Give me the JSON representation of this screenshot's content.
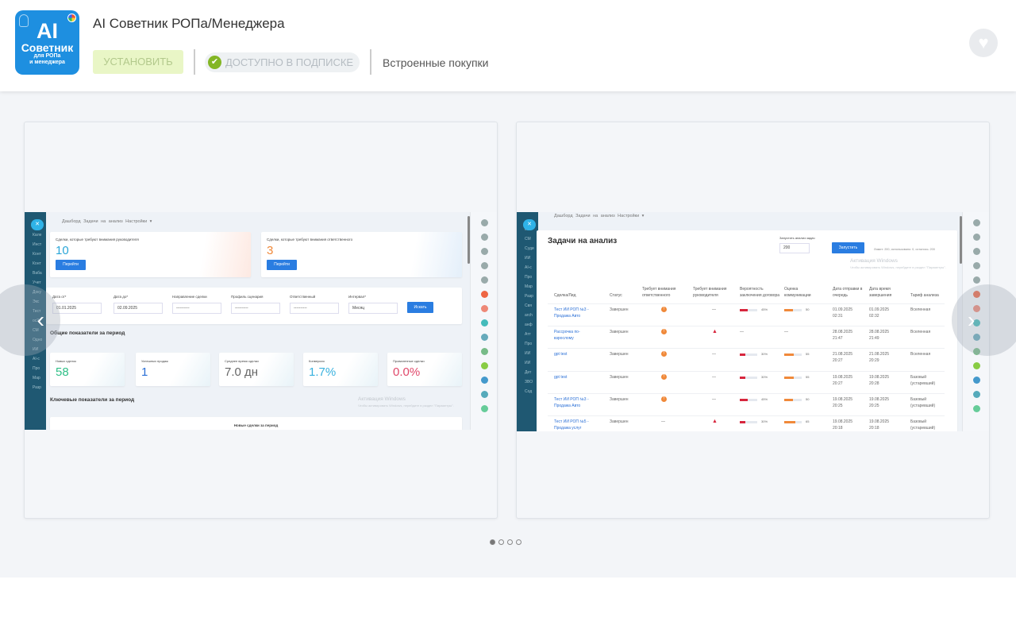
{
  "app": {
    "logo_text": [
      "AI",
      "Советник",
      "для РОПа",
      "и менеджера"
    ],
    "title": "AI Советник РОПа/Менеджера",
    "install_label": "УСТАНОВИТЬ",
    "subscription_label": "ДОСТУПНО В ПОДПИСКЕ",
    "inapp_label": "Встроенные покупки"
  },
  "colors": {
    "accent": "#1e8fe0",
    "install_bg": "#e9f6c6",
    "check": "#83b624"
  },
  "carousel": {
    "pages": 4,
    "active": 0
  },
  "shot1": {
    "nav": "Дашборд  Задачи на анализ  Настройки ▾",
    "side": [
      "Кале",
      "Инст",
      "Конт",
      "Конт",
      "Ваба",
      "Учет",
      "Доку",
      "Экс",
      "Тест",
      "ос2",
      "СМ",
      "Одно",
      "ИИ",
      "AI-с",
      "Про",
      "Мар",
      "Разр"
    ],
    "alert_cards": [
      {
        "label": "Сделки, которые требуют внимания руководителя",
        "value": "10",
        "color": "#2aa6d8"
      },
      {
        "label": "Сделки, которые требуют внимания ответственного",
        "value": "3",
        "color": "#f0893a"
      }
    ],
    "go_label": "Перейти",
    "filters": [
      {
        "label": "Дата от*",
        "value": "01.01.2025"
      },
      {
        "label": "Дата до*",
        "value": "02.09.2025"
      },
      {
        "label": "Направление сделки",
        "value": "----------"
      },
      {
        "label": "Профиль сценария",
        "value": "----------"
      },
      {
        "label": "Ответственный",
        "value": "----------"
      },
      {
        "label": "Интервал*",
        "value": "Месяц"
      }
    ],
    "search_label": "Искать",
    "section1": "Общие показатели за период",
    "stats": [
      {
        "label": "Новых сделок",
        "value": "58",
        "color": "#2fbf87"
      },
      {
        "label": "Успешных продаж",
        "value": "1",
        "color": "#2a6fd6"
      },
      {
        "label": "Среднее время сделки",
        "value": "7.0 дн",
        "color": "#666"
      },
      {
        "label": "Конверсия",
        "value": "1.7%",
        "color": "#39b1de"
      },
      {
        "label": "Проваленные сделки",
        "value": "0.0%",
        "color": "#e0486a"
      }
    ],
    "section2": "Ключевые показатели за период",
    "chart_title": "Новые сделки за период",
    "watermark": "Активация Windows",
    "watermark_sub": "Чтобы активировать Windows, перейдите в раздел \"Параметры\"."
  },
  "shot2": {
    "nav": "Дашборд  Задачи на анализ  Настройки ▾",
    "side": [
      "оо2",
      "СМ",
      "Суди",
      "ИИ",
      "AI-с",
      "Про",
      "Мар",
      "Разр",
      "Свя",
      "arch",
      "анф",
      "Атт",
      "Про",
      "ИИ",
      "ИИ",
      "Дет",
      "ЗВО",
      "Сод"
    ],
    "title": "Задачи на анализ",
    "run_label": "Запустить анализ задач",
    "run_value": "200",
    "run_button": "Запустить",
    "limit_text": "Лимит: 200, использовано: 0, осталось: 200",
    "columns": [
      "Сделка/Лид",
      "Статус",
      "Требует внимания ответственного",
      "Требует внимания руководителя",
      "Вероятность заключения договора",
      "Оценка коммуникации",
      "Дата отправки в очередь",
      "Дата время завершения",
      "Тариф анализа"
    ],
    "rows": [
      {
        "deal": "Тест ИИ РОП №3 - Продажа Авто",
        "status": "Завершен",
        "resp": "!",
        "head": "—",
        "prob": 45,
        "prob_label": "45%",
        "comm": 50,
        "comm_label": "50",
        "sent": "01.09.2025 02:31",
        "done": "01.09.2025 02:32",
        "tariff": "Вселенная"
      },
      {
        "deal": "Рассрочка по-взрослому",
        "status": "Завершен",
        "resp": "!",
        "head": "▲",
        "prob": null,
        "prob_label": "—",
        "comm": null,
        "comm_label": "—",
        "sent": "28.08.2025 21:47",
        "done": "28.08.2025 21:49",
        "tariff": "Вселенная"
      },
      {
        "deal": "gpt test",
        "status": "Завершен",
        "resp": "!",
        "head": "—",
        "prob": 30,
        "prob_label": "30%",
        "comm": 55,
        "comm_label": "55",
        "sent": "21.08.2025 20:27",
        "done": "21.08.2025 20:29",
        "tariff": "Вселенная"
      },
      {
        "deal": "gpt test",
        "status": "Завершен",
        "resp": "!",
        "head": "—",
        "prob": 30,
        "prob_label": "30%",
        "comm": 55,
        "comm_label": "55",
        "sent": "19.08.2025 20:27",
        "done": "19.08.2025 20:28",
        "tariff": "Базовый (устаревший)"
      },
      {
        "deal": "Тест ИИ РОП №3 - Продажа Авто",
        "status": "Завершен",
        "resp": "!",
        "head": "—",
        "prob": 45,
        "prob_label": "45%",
        "comm": 50,
        "comm_label": "50",
        "sent": "19.08.2025 20:25",
        "done": "19.08.2025 20:25",
        "tariff": "Базовый (устаревший)"
      },
      {
        "deal": "Тест ИИ РОП №5 - Продажа услуг",
        "status": "Завершен",
        "resp": "—",
        "head": "▲",
        "prob": 30,
        "prob_label": "30%",
        "comm": 65,
        "comm_label": "65",
        "sent": "19.08.2025 20:18",
        "done": "19.08.2025 20:18",
        "tariff": "Базовый (устаревший)"
      }
    ],
    "watermark": "Активация Windows",
    "watermark_sub": "Чтобы активировать Windows, перейдите в раздел \"Параметры\"."
  },
  "icons": {
    "heart": "heart-icon",
    "prev": "chevron-left-icon",
    "next": "chevron-right-icon",
    "check": "check-circle-icon"
  }
}
